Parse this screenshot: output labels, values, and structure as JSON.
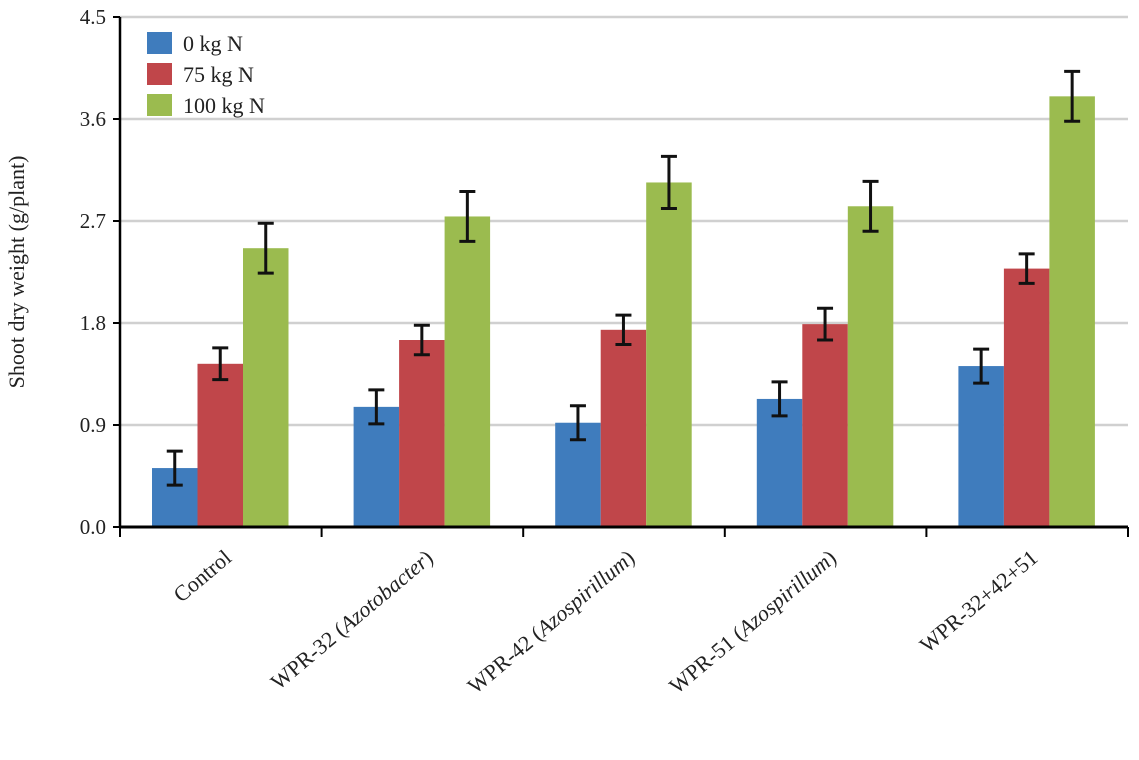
{
  "chart_data": {
    "type": "bar",
    "title": "",
    "xlabel": "",
    "ylabel": "Shoot dry weight (g/plant)",
    "ylim": [
      0,
      4.5
    ],
    "yticks": [
      "0.0",
      "0.9",
      "1.8",
      "2.7",
      "3.6",
      "4.5"
    ],
    "grid": true,
    "legend_position": "top-left",
    "categories": [
      {
        "prefix": "Control",
        "italic": "",
        "suffix": ""
      },
      {
        "prefix": "WPR-32 (",
        "italic": "Azotobacter",
        "suffix": ")"
      },
      {
        "prefix": "WPR-42 (",
        "italic": "Azospirillum",
        "suffix": ")"
      },
      {
        "prefix": "WPR-51 (",
        "italic": "Azospirillum",
        "suffix": ")"
      },
      {
        "prefix": "WPR-32+42+51",
        "italic": "",
        "suffix": ""
      }
    ],
    "series": [
      {
        "name": "0 kg N",
        "color": "#3f7cbd",
        "values": [
          0.52,
          1.06,
          0.92,
          1.13,
          1.42
        ],
        "errors": [
          0.15,
          0.15,
          0.15,
          0.15,
          0.15
        ]
      },
      {
        "name": "75 kg N",
        "color": "#c0464a",
        "values": [
          1.44,
          1.65,
          1.74,
          1.79,
          2.28
        ],
        "errors": [
          0.14,
          0.13,
          0.13,
          0.14,
          0.13
        ]
      },
      {
        "name": "100 kg N",
        "color": "#9bbb4f",
        "values": [
          2.46,
          2.74,
          3.04,
          2.83,
          3.8
        ],
        "errors": [
          0.22,
          0.22,
          0.23,
          0.22,
          0.22
        ]
      }
    ]
  }
}
